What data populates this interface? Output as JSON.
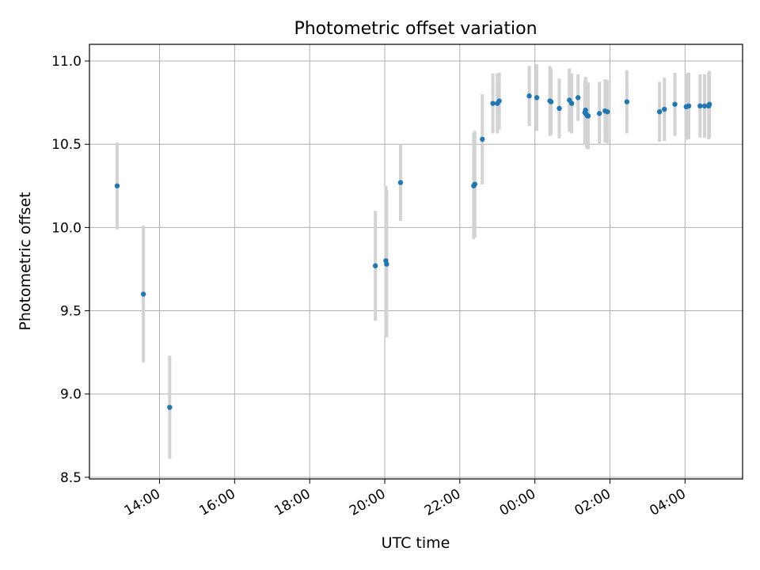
{
  "chart_data": {
    "type": "scatter",
    "title": "Photometric offset variation",
    "xlabel": "UTC time",
    "ylabel": "Photometric offset",
    "xlim": [
      "12:08",
      "05:32 (+1 day)"
    ],
    "ylim": [
      8.49,
      11.1
    ],
    "grid": true,
    "x_ticks": [
      "14:00",
      "16:00",
      "18:00",
      "20:00",
      "22:00",
      "00:00",
      "02:00",
      "04:00"
    ],
    "y_ticks": [
      "8.5",
      "9.0",
      "9.5",
      "10.0",
      "10.5",
      "11.0"
    ],
    "marker_color": "#1f77b4",
    "errorbar_color": "#d3d3d3",
    "x_hours_since_midnight_day1": [
      12.87,
      13.57,
      14.27,
      19.75,
      20.03,
      20.05,
      20.42,
      22.37,
      22.4,
      22.6,
      22.88,
      23.0,
      23.05,
      23.85,
      24.05,
      24.4,
      24.43,
      24.65,
      24.92,
      24.98,
      25.15,
      25.33,
      25.35,
      25.37,
      25.4,
      25.42,
      25.72,
      25.87,
      25.93,
      26.45,
      27.32,
      27.45,
      27.73,
      28.03,
      28.1,
      28.4,
      28.52,
      28.63,
      28.65
    ],
    "y": [
      10.25,
      9.6,
      8.92,
      9.77,
      9.8,
      9.78,
      10.27,
      10.25,
      10.26,
      10.53,
      10.745,
      10.745,
      10.76,
      10.79,
      10.78,
      10.76,
      10.755,
      10.715,
      10.765,
      10.745,
      10.78,
      10.69,
      10.705,
      10.68,
      10.67,
      10.67,
      10.685,
      10.7,
      10.695,
      10.755,
      10.695,
      10.71,
      10.74,
      10.725,
      10.73,
      10.73,
      10.73,
      10.73,
      10.74
    ],
    "yerr": [
      0.26,
      0.41,
      0.31,
      0.33,
      0.45,
      0.44,
      0.23,
      0.32,
      0.32,
      0.27,
      0.18,
      0.18,
      0.17,
      0.18,
      0.2,
      0.21,
      0.2,
      0.18,
      0.19,
      0.18,
      0.14,
      0.19,
      0.2,
      0.2,
      0.2,
      0.2,
      0.19,
      0.19,
      0.19,
      0.19,
      0.18,
      0.19,
      0.19,
      0.2,
      0.2,
      0.19,
      0.19,
      0.2,
      0.2
    ]
  }
}
